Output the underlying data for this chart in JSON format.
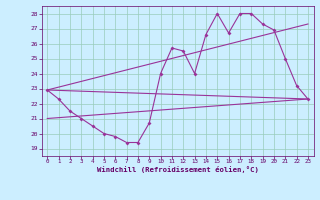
{
  "bg_color": "#cceeff",
  "line_color": "#993399",
  "grid_color": "#99ccbb",
  "xlabel": "Windchill (Refroidissement éolien,°C)",
  "xlim": [
    -0.5,
    23.5
  ],
  "ylim": [
    18.5,
    28.5
  ],
  "yticks": [
    19,
    20,
    21,
    22,
    23,
    24,
    25,
    26,
    27,
    28
  ],
  "xticks": [
    0,
    1,
    2,
    3,
    4,
    5,
    6,
    7,
    8,
    9,
    10,
    11,
    12,
    13,
    14,
    15,
    16,
    17,
    18,
    19,
    20,
    21,
    22,
    23
  ],
  "line1_x": [
    0,
    1,
    2,
    3,
    4,
    5,
    6,
    7,
    8,
    9,
    10,
    11,
    12,
    13,
    14,
    15,
    16,
    17,
    18,
    19,
    20,
    21,
    22,
    23
  ],
  "line1_y": [
    22.9,
    22.3,
    21.5,
    21.0,
    20.5,
    20.0,
    19.8,
    19.4,
    19.4,
    20.7,
    24.0,
    25.7,
    25.5,
    24.0,
    26.6,
    28.0,
    26.7,
    28.0,
    28.0,
    27.3,
    26.9,
    25.0,
    23.2,
    22.3
  ],
  "line2_x": [
    0,
    23
  ],
  "line2_y": [
    22.9,
    22.3
  ],
  "line3_x": [
    0,
    23
  ],
  "line3_y": [
    21.0,
    22.3
  ],
  "line4_x": [
    0,
    23
  ],
  "line4_y": [
    22.9,
    27.3
  ],
  "tick_color": "#660066",
  "spine_color": "#660066"
}
